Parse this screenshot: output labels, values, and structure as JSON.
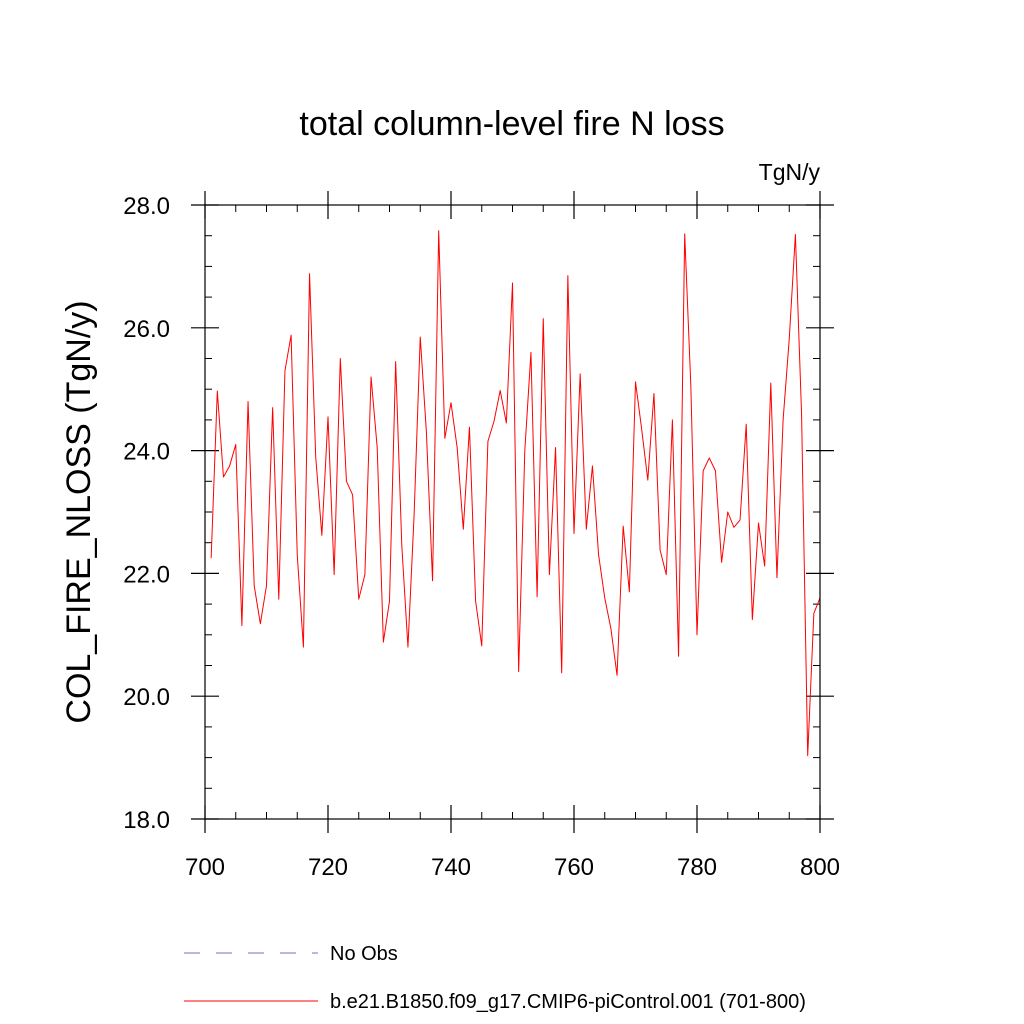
{
  "chart_data": {
    "type": "line",
    "title": "total column-level fire N loss",
    "units_label": "TgN/y",
    "ylabel": "COL_FIRE_NLOSS  (TgN/y)",
    "xlabel": "",
    "xlim": [
      700,
      800
    ],
    "ylim": [
      18,
      28
    ],
    "x_ticks": [
      700,
      720,
      740,
      760,
      780,
      800
    ],
    "x_tick_labels": [
      "700",
      "720",
      "740",
      "760",
      "780",
      "800"
    ],
    "y_ticks": [
      18,
      20,
      22,
      24,
      26,
      28
    ],
    "y_tick_labels": [
      "18.0",
      "20.0",
      "22.0",
      "24.0",
      "26.0",
      "28.0"
    ],
    "x_minor_step": 5,
    "y_minor_step": 0.5,
    "grid": false,
    "legend": [
      {
        "label": "No Obs",
        "color": "#7070c8",
        "style": "dashed"
      },
      {
        "label": "b.e21.B1850.f09_g17.CMIP6-piControl.001 (701-800)",
        "color": "#ff0000",
        "style": "solid"
      }
    ],
    "series": [
      {
        "name": "b.e21.B1850.f09_g17.CMIP6-piControl.001 (701-800)",
        "color": "#ff0000",
        "x": [
          701,
          702,
          703,
          704,
          705,
          706,
          707,
          708,
          709,
          710,
          711,
          712,
          713,
          714,
          715,
          716,
          717,
          718,
          719,
          720,
          721,
          722,
          723,
          724,
          725,
          726,
          727,
          728,
          729,
          730,
          731,
          732,
          733,
          734,
          735,
          736,
          737,
          738,
          739,
          740,
          741,
          742,
          743,
          744,
          745,
          746,
          747,
          748,
          749,
          750,
          751,
          752,
          753,
          754,
          755,
          756,
          757,
          758,
          759,
          760,
          761,
          762,
          763,
          764,
          765,
          766,
          767,
          768,
          769,
          770,
          771,
          772,
          773,
          774,
          775,
          776,
          777,
          778,
          779,
          780,
          781,
          782,
          783,
          784,
          785,
          786,
          787,
          788,
          789,
          790,
          791,
          792,
          793,
          794,
          795,
          796,
          797,
          798,
          799,
          800
        ],
        "values": [
          22.25,
          24.97,
          23.57,
          23.75,
          24.1,
          21.15,
          24.8,
          21.8,
          21.18,
          21.8,
          24.7,
          21.58,
          25.3,
          25.88,
          22.3,
          20.8,
          26.88,
          23.9,
          22.62,
          24.55,
          21.98,
          25.5,
          23.5,
          23.28,
          21.58,
          21.98,
          25.2,
          24.05,
          20.88,
          21.55,
          25.45,
          22.45,
          20.8,
          22.95,
          25.85,
          24.3,
          21.88,
          27.58,
          24.2,
          24.78,
          24.05,
          22.72,
          24.38,
          21.55,
          20.82,
          24.15,
          24.48,
          24.98,
          24.45,
          26.73,
          20.4,
          24.0,
          25.6,
          21.62,
          26.15,
          21.98,
          24.05,
          20.38,
          26.85,
          22.65,
          25.25,
          22.72,
          23.75,
          22.3,
          21.6,
          21.1,
          20.34,
          22.77,
          21.7,
          25.12,
          24.35,
          23.52,
          24.93,
          22.38,
          21.98,
          24.5,
          20.65,
          27.53,
          25.05,
          21.0,
          23.67,
          23.88,
          23.67,
          22.18,
          23.0,
          22.75,
          22.87,
          24.43,
          21.25,
          22.82,
          22.12,
          25.1,
          21.93,
          24.5,
          25.82,
          27.52,
          24.6,
          19.03,
          21.35,
          21.6
        ]
      }
    ]
  }
}
